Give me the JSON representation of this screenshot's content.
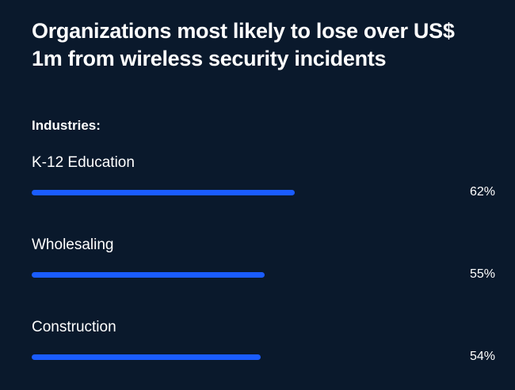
{
  "chart_data": {
    "type": "bar",
    "orientation": "horizontal",
    "title": "Organizations most likely to lose over US$ 1m from wireless security incidents",
    "subtitle": "Industries:",
    "categories": [
      "K-12 Education",
      "Wholesaling",
      "Construction"
    ],
    "values": [
      62,
      55,
      54
    ],
    "value_labels": [
      "62%",
      "55%",
      "54%"
    ],
    "color": "#1a5cff"
  }
}
